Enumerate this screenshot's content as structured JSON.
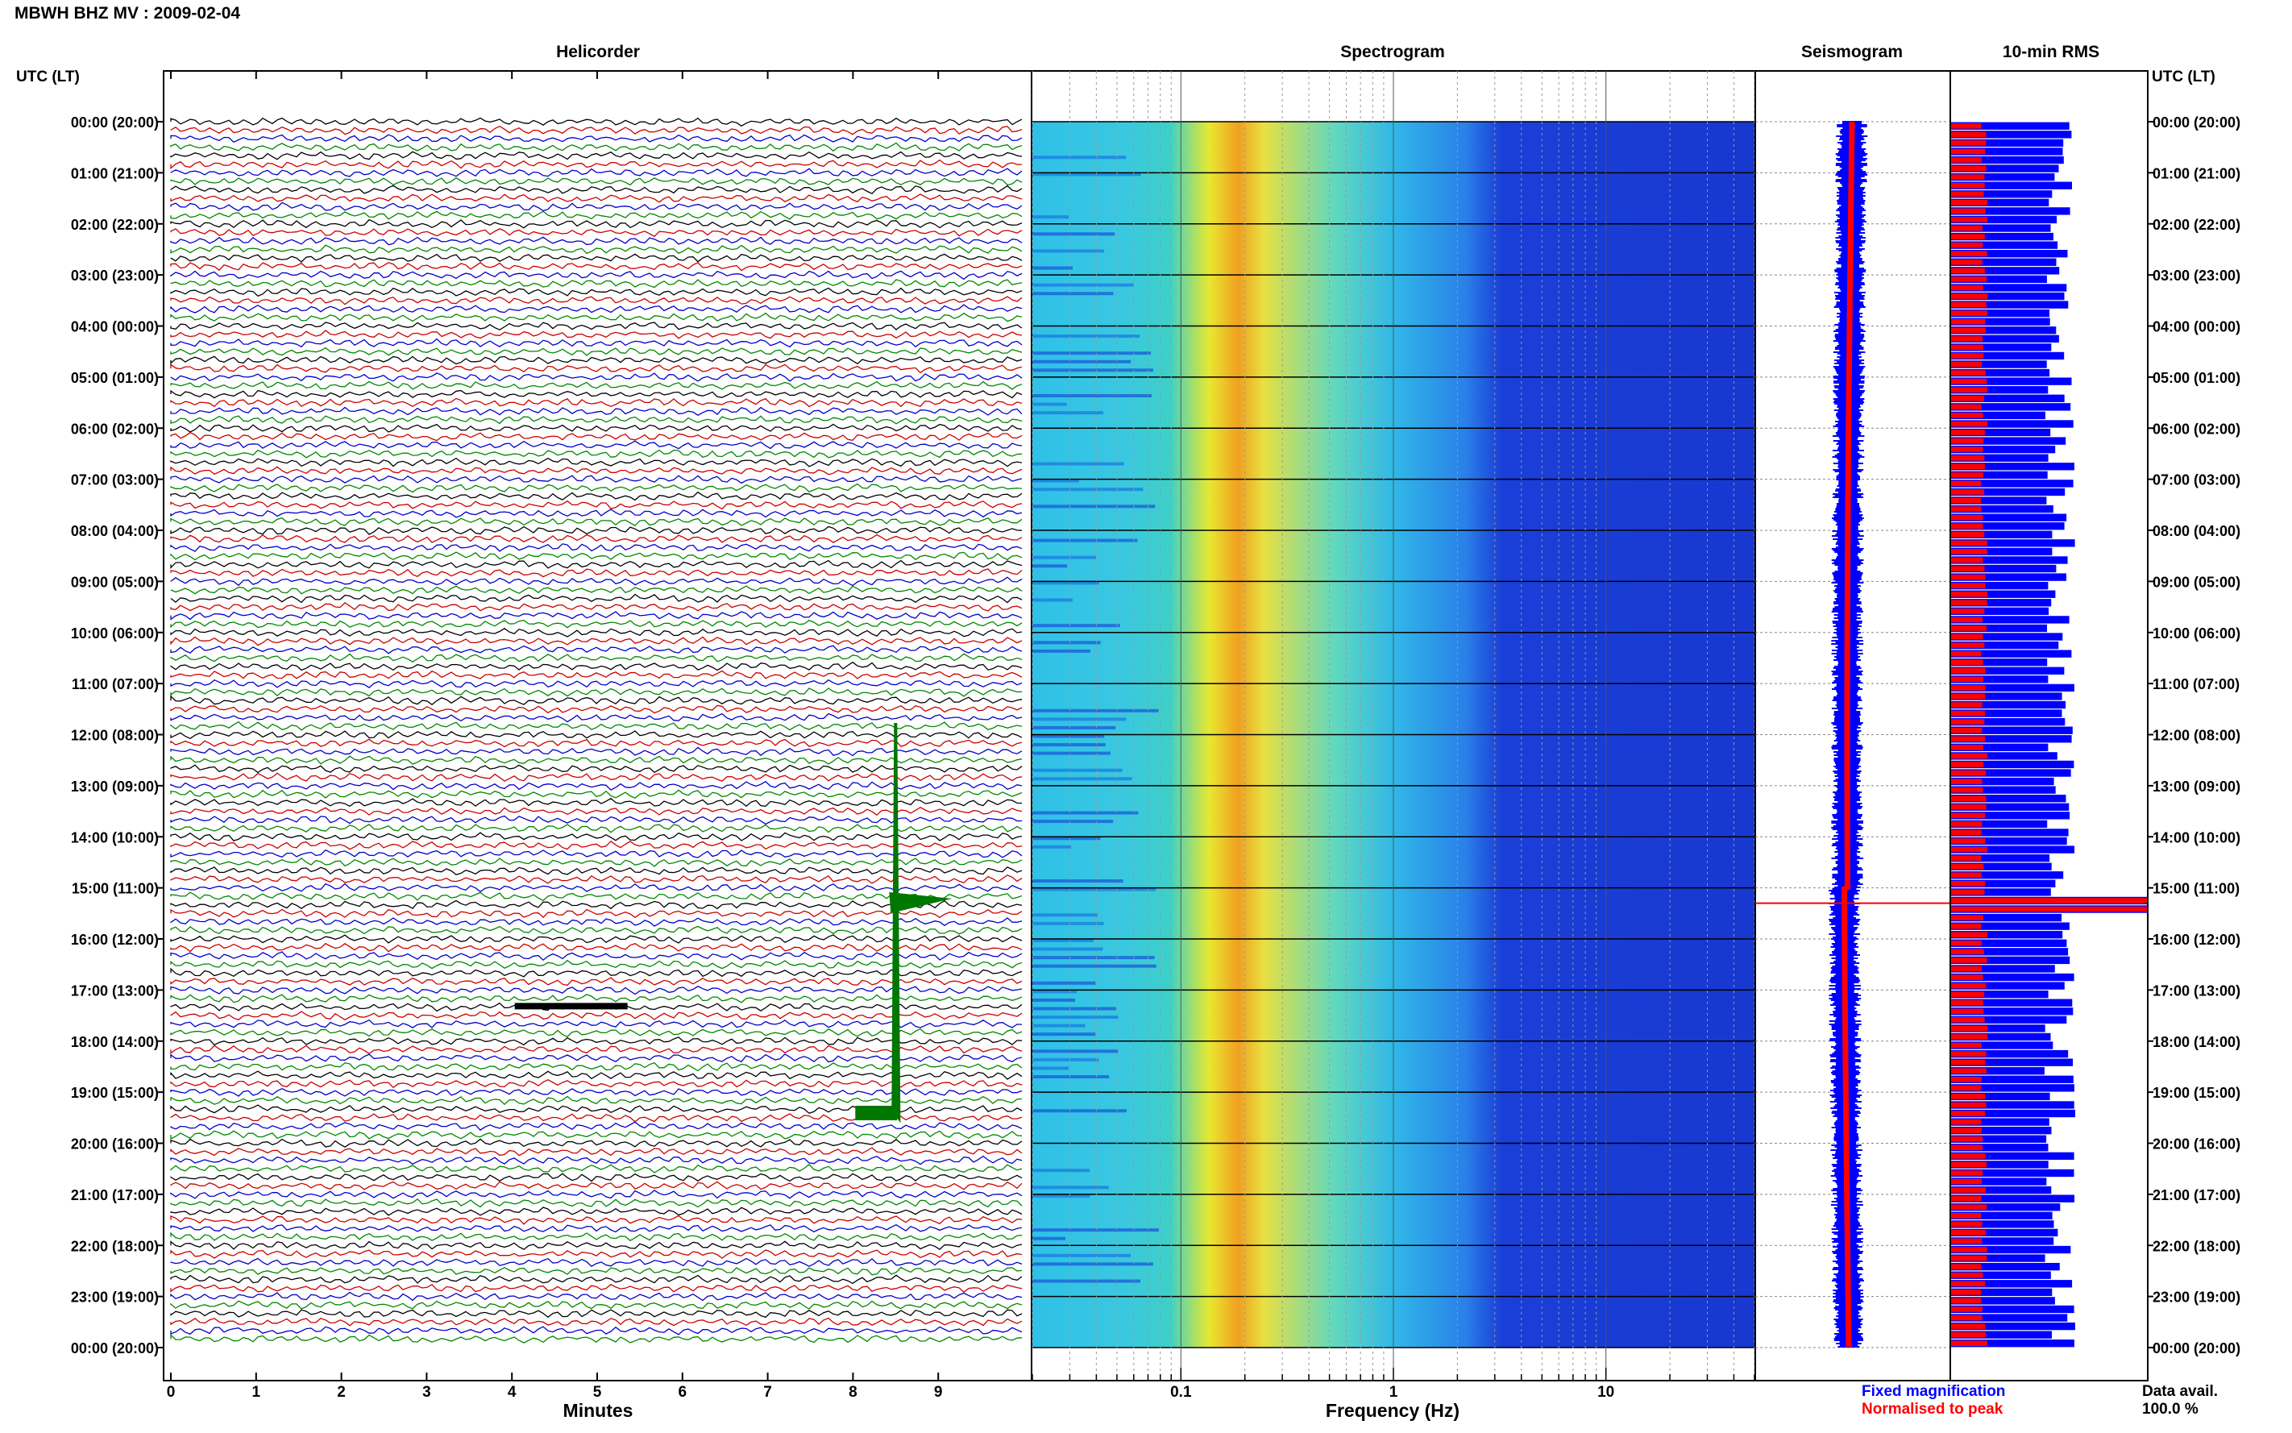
{
  "header": {
    "title": "MBWH BHZ MV : 2009-02-04"
  },
  "panels": {
    "helicorder": "Helicorder",
    "spectrogram": "Spectrogram",
    "seismogram": "Seismogram",
    "rms": "10-min RMS"
  },
  "axes": {
    "left_label": "UTC (LT)",
    "right_label": "UTC (LT)",
    "helicorder_xlabel": "Minutes",
    "spectrogram_xlabel": "Frequency (Hz)"
  },
  "legend": {
    "fixed": "Fixed magnification",
    "fixed_color": "#0000ff",
    "normalised": "Normalised to peak",
    "normalised_color": "#ff0000"
  },
  "footer": {
    "data_avail_label": "Data avail.",
    "data_avail_value": "100.0 %"
  },
  "colors": {
    "trace_cycle": [
      "#000000",
      "#cc0000",
      "#0000cc",
      "#008800"
    ],
    "rms_fixed": "#0000ff",
    "rms_normalised": "#ff0000"
  },
  "chart_data": [
    {
      "type": "line",
      "panel": "Helicorder",
      "xlabel": "Minutes",
      "x_ticks": [
        0,
        1,
        2,
        3,
        4,
        5,
        6,
        7,
        8,
        9
      ],
      "xlim": [
        0,
        10
      ],
      "rows_per_hour": 6,
      "y_tick_labels": [
        "00:00 (20:00)",
        "01:00 (21:00)",
        "02:00 (22:00)",
        "03:00 (23:00)",
        "04:00 (00:00)",
        "05:00 (01:00)",
        "06:00 (02:00)",
        "07:00 (03:00)",
        "08:00 (04:00)",
        "09:00 (05:00)",
        "10:00 (06:00)",
        "11:00 (07:00)",
        "12:00 (08:00)",
        "13:00 (09:00)",
        "14:00 (10:00)",
        "15:00 (11:00)",
        "16:00 (12:00)",
        "17:00 (13:00)",
        "18:00 (14:00)",
        "19:00 (15:00)",
        "20:00 (16:00)",
        "21:00 (17:00)",
        "22:00 (18:00)",
        "23:00 (19:00)",
        "00:00 (20:00)"
      ],
      "events": [
        {
          "hour": 15.4,
          "minute": 8.5,
          "note": "large green transient"
        },
        {
          "hour": 17.3,
          "minute": 4.6,
          "note": "black wavelet"
        }
      ]
    },
    {
      "type": "heatmap",
      "panel": "Spectrogram",
      "xlabel": "Frequency (Hz)",
      "x_scale": "log",
      "xlim": [
        0.02,
        50
      ],
      "x_tick_labels": [
        "0.1",
        "1",
        "10"
      ],
      "y_range_hours": [
        0,
        24
      ],
      "peak_band_hz": [
        0.2,
        0.3
      ]
    },
    {
      "type": "line",
      "panel": "Seismogram",
      "series": [
        {
          "name": "Fixed magnification",
          "color": "#0000ff"
        },
        {
          "name": "Normalised to peak",
          "color": "#ff0000"
        }
      ],
      "event_hour": 15.3
    },
    {
      "type": "bar",
      "panel": "10-min RMS",
      "orientation": "horizontal",
      "bins_per_hour": 6,
      "fixed_level": 0.58,
      "normalised_level": 0.17,
      "peak_hour": 15.3,
      "series": [
        {
          "name": "Fixed magnification",
          "color": "#0000ff"
        },
        {
          "name": "Normalised to peak",
          "color": "#ff0000"
        }
      ]
    }
  ]
}
